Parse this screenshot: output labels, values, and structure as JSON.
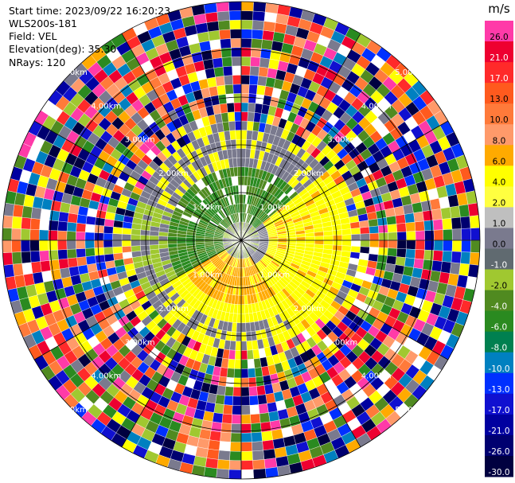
{
  "info": {
    "start_time": "Start time: 2023/09/22 16:20:23",
    "site": "WLS200s-181",
    "field": "Field: VEL",
    "elevation": "Elevation(deg): 35.30",
    "nrays": "NRays: 120"
  },
  "ring_labels": [
    "1.00km",
    "2.00km",
    "3.00km",
    "4.00km",
    "5.00km"
  ],
  "colorbar": {
    "unit": "m/s",
    "levels": [
      {
        "label": "26.0",
        "color": "#ff3aa8"
      },
      {
        "label": "21.0",
        "color": "#ee0030"
      },
      {
        "label": "17.0",
        "color": "#ff2a2a"
      },
      {
        "label": "13.0",
        "color": "#ff5a1e"
      },
      {
        "label": "10.0",
        "color": "#ff7a3a"
      },
      {
        "label": "8.0",
        "color": "#ff9a6a"
      },
      {
        "label": "6.0",
        "color": "#ffaa00"
      },
      {
        "label": "4.0",
        "color": "#ffff00"
      },
      {
        "label": "2.0",
        "color": "#ffff40"
      },
      {
        "label": "1.0",
        "color": "#bfbfbf"
      },
      {
        "label": "0.0",
        "color": "#7a7a8e"
      },
      {
        "label": "-1.0",
        "color": "#606a70"
      },
      {
        "label": "-2.0",
        "color": "#a0c830"
      },
      {
        "label": "-4.0",
        "color": "#508a20"
      },
      {
        "label": "-6.0",
        "color": "#2a8a20"
      },
      {
        "label": "-8.0",
        "color": "#008050"
      },
      {
        "label": "-10.0",
        "color": "#0080c0"
      },
      {
        "label": "-13.0",
        "color": "#0030ff"
      },
      {
        "label": "-17.0",
        "color": "#1010d0"
      },
      {
        "label": "-21.0",
        "color": "#0000a0"
      },
      {
        "label": "-26.0",
        "color": "#000070"
      },
      {
        "label": "-30.0",
        "color": "#000040"
      }
    ]
  }
}
